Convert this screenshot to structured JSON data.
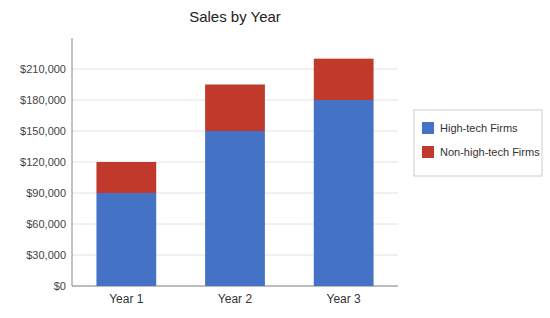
{
  "chart_data": {
    "type": "bar",
    "title": "Sales by Year",
    "categories": [
      "Year 1",
      "Year 2",
      "Year 3"
    ],
    "series": [
      {
        "name": "High-tech Firms",
        "color": "#4472c4",
        "values": [
          90000,
          150000,
          180000
        ]
      },
      {
        "name": "Non-high-tech Firms",
        "color": "#c0392b",
        "values": [
          30000,
          45000,
          40000
        ]
      }
    ],
    "stacked": true,
    "ylim": [
      0,
      240000
    ],
    "yticks": [
      {
        "value": 0,
        "label": "$0"
      },
      {
        "value": 30000,
        "label": "$30,000"
      },
      {
        "value": 60000,
        "label": "$60,000"
      },
      {
        "value": 90000,
        "label": "$90,000"
      },
      {
        "value": 120000,
        "label": "$120,000"
      },
      {
        "value": 150000,
        "label": "$150,000"
      },
      {
        "value": 180000,
        "label": "$180,000"
      },
      {
        "value": 210000,
        "label": "$210,000"
      }
    ],
    "grid": true,
    "legend": "right"
  }
}
